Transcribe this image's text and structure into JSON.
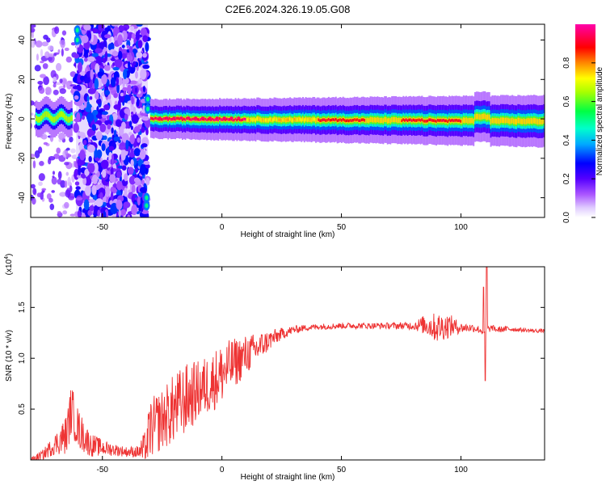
{
  "figure": {
    "title": "C2E6.2024.326.19.05.G08"
  },
  "chart_data": [
    {
      "type": "heatmap",
      "title": "C2E6.2024.326.19.05.G08",
      "xlabel": "Height of straight line (km)",
      "ylabel": "Frequency (Hz)",
      "xlim": [
        -80,
        135
      ],
      "ylim": [
        -50,
        48
      ],
      "x_ticks": [
        -50,
        0,
        50,
        100
      ],
      "y_ticks": [
        -40,
        -20,
        0,
        20,
        40
      ],
      "colorbar": {
        "label": "Normalized spectral amplitude",
        "range": [
          0,
          1
        ],
        "ticks": [
          "0.0",
          "0.2",
          "0.4",
          "0.6",
          "0.8"
        ],
        "colormap": [
          "#ffffff",
          "#cc99ff",
          "#8800ff",
          "#0000ff",
          "#00ccff",
          "#00ff66",
          "#aaff00",
          "#ffff00",
          "#ff8800",
          "#ff0000",
          "#ff00aa"
        ]
      },
      "features": [
        {
          "name": "main carrier line",
          "x_range": [
            -30,
            135
          ],
          "frequency": 0,
          "peak_amplitude": 0.95
        },
        {
          "name": "noisy occulted region",
          "x_range": [
            -61,
            -31
          ],
          "frequency_range": [
            -50,
            48
          ],
          "typical_amplitude": 0.25
        },
        {
          "name": "sparse noise region",
          "x_range": [
            -80,
            -60
          ],
          "frequency_range": [
            -50,
            48
          ],
          "typical_amplitude": 0.1
        }
      ]
    },
    {
      "type": "line",
      "xlabel": "Height of straight line (km)",
      "ylabel": "SNR (10 * v/v)",
      "y_scale_label": "(x10",
      "y_scale_exponent": "4",
      "xlim": [
        -80,
        135
      ],
      "ylim": [
        0,
        1.9
      ],
      "x_ticks": [
        -50,
        0,
        50,
        100
      ],
      "y_ticks": [
        "0.5",
        "1.0",
        "1.5"
      ],
      "series": [
        {
          "color": "#ee3333",
          "x": [
            -80,
            -75,
            -70,
            -65,
            -63,
            -60,
            -55,
            -50,
            -45,
            -40,
            -35,
            -32,
            -30,
            -25,
            -20,
            -15,
            -10,
            -5,
            0,
            5,
            10,
            15,
            20,
            25,
            30,
            35,
            40,
            50,
            60,
            70,
            80,
            85,
            90,
            95,
            100,
            105,
            108,
            110,
            111,
            113,
            115,
            120,
            125,
            130,
            135
          ],
          "y": [
            0.0,
            0.05,
            0.15,
            0.25,
            0.5,
            0.3,
            0.15,
            0.12,
            0.1,
            0.08,
            0.08,
            0.1,
            0.3,
            0.4,
            0.5,
            0.6,
            0.68,
            0.75,
            0.85,
            0.95,
            1.03,
            1.1,
            1.18,
            1.24,
            1.28,
            1.3,
            1.31,
            1.32,
            1.32,
            1.32,
            1.32,
            1.33,
            1.3,
            1.32,
            1.3,
            1.3,
            1.28,
            1.25,
            1.28,
            1.3,
            1.28,
            1.29,
            1.28,
            1.27,
            1.27
          ],
          "noise": [
            0.02,
            0.05,
            0.1,
            0.2,
            0.25,
            0.2,
            0.12,
            0.08,
            0.06,
            0.05,
            0.06,
            0.2,
            0.3,
            0.3,
            0.35,
            0.35,
            0.3,
            0.3,
            0.3,
            0.25,
            0.2,
            0.15,
            0.1,
            0.06,
            0.04,
            0.03,
            0.03,
            0.03,
            0.03,
            0.03,
            0.04,
            0.1,
            0.15,
            0.12,
            0.05,
            0.04,
            0.04,
            0.04,
            0.04,
            0.03,
            0.03,
            0.03,
            0.02,
            0.02,
            0.02
          ]
        }
      ],
      "spikes": [
        {
          "x": 109.5,
          "y": 1.7
        },
        {
          "x": 110.2,
          "y": 0.78
        },
        {
          "x": 110.8,
          "y": 1.9
        }
      ]
    }
  ]
}
